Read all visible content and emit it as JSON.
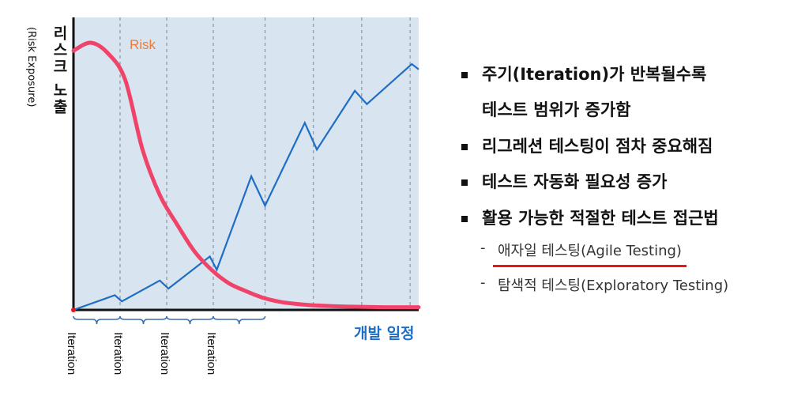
{
  "chart_data": {
    "type": "line",
    "x_domain": [
      0,
      10
    ],
    "ylim": [
      0,
      1
    ],
    "series": [
      {
        "name": "Risk",
        "color": "#f0436a",
        "x": [
          0,
          0.5,
          1,
          1.5,
          2,
          2.5,
          3,
          3.5,
          4,
          4.5,
          5,
          5.5,
          6,
          6.5,
          7,
          7.5,
          8,
          8.5,
          9,
          9.5,
          10
        ],
        "y": [
          0.97,
          1.0,
          0.96,
          0.86,
          0.6,
          0.43,
          0.32,
          0.22,
          0.15,
          0.1,
          0.07,
          0.045,
          0.03,
          0.022,
          0.017,
          0.014,
          0.012,
          0.011,
          0.01,
          0.01,
          0.01
        ]
      },
      {
        "name": "",
        "color": "#1e6ec6",
        "x": [
          0,
          1.2,
          1.4,
          2.5,
          2.75,
          3.95,
          4.15,
          5.15,
          5.55,
          6.7,
          7.05,
          8.15,
          8.5,
          9.8,
          10
        ],
        "y": [
          0.0,
          0.055,
          0.032,
          0.11,
          0.08,
          0.2,
          0.15,
          0.5,
          0.39,
          0.7,
          0.6,
          0.82,
          0.77,
          0.92,
          0.9
        ]
      }
    ],
    "iteration_boundaries": [
      1.35,
      2.7,
      4.05,
      5.55,
      6.95,
      8.35,
      9.75
    ],
    "bracket_span": [
      0,
      5.55
    ],
    "iteration_labels": [
      "Iteration",
      "Iteration",
      "Iteration",
      "Iteration"
    ],
    "series_label": "Risk",
    "ylabel": "리스크 노출",
    "ylabel_sub": "(Risk Exposure)",
    "xlabel": "개발 일정",
    "background": "#d8e4ef",
    "grid": "vertical-dashed"
  },
  "bullets": [
    {
      "line1": "주기(Iteration)가 반복될수록",
      "line2": "테스트 범위가 증가함"
    },
    {
      "line1": "리그레션 테스팅이 점차 중요해짐"
    },
    {
      "line1": "테스트 자동화 필요성 증가"
    },
    {
      "line1": "활용 가능한 적절한 테스트 접근법"
    }
  ],
  "sub_items": [
    {
      "dash": "-",
      "text": "애자일 테스팅(Agile Testing)",
      "underline_color": "#e8151b"
    },
    {
      "dash": "-",
      "text": "탐색적 테스팅(Exploratory Testing)"
    }
  ]
}
